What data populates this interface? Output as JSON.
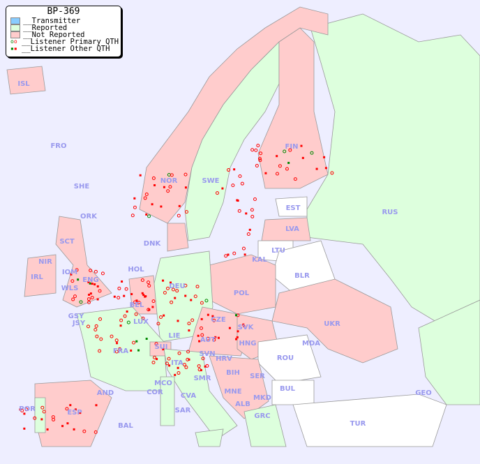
{
  "title": "BP-369",
  "legend": [
    {
      "label": "__Transmitter",
      "color": "#88ccff"
    },
    {
      "label": "__Reported",
      "color": "#ddffdd"
    },
    {
      "label": "__Not Reported",
      "color": "#ffcccc"
    },
    {
      "label": "__Listener Primary QTH",
      "marker": "circle"
    },
    {
      "label": "__Listener Other QTH",
      "marker": "square"
    }
  ],
  "colors": {
    "sea": "#eeeeff",
    "reported": "#ddffdd",
    "not_reported": "#ffcccc",
    "no_data": "#ffffff",
    "listener": "#ff0000",
    "listener_alt": "#008800",
    "label": "#9999ee"
  },
  "labels": [
    "ISL",
    "FRO",
    "SHE",
    "ORK",
    "NOR",
    "SWE",
    "FIN",
    "EST",
    "RUS",
    "LVA",
    "DNK",
    "LTU",
    "KAL",
    "BLR",
    "HOL",
    "DEU",
    "POL",
    "IRL",
    "IOM",
    "WLS",
    "ENG",
    "GSY",
    "JSY",
    "BEL",
    "LUX",
    "CZE",
    "SVK",
    "UKR",
    "FRA",
    "SUI",
    "LIE",
    "AUT",
    "HNG",
    "MDA",
    "ROU",
    "SVN",
    "HRV",
    "ITA",
    "BIH",
    "SER",
    "MCO",
    "COR",
    "SMR",
    "CVA",
    "MNE",
    "BUL",
    "GEO",
    "AND",
    "POR",
    "ESP",
    "BAL",
    "SAR",
    "ALB",
    "MKD",
    "GRC",
    "TUR",
    "SCT",
    "NIR"
  ]
}
